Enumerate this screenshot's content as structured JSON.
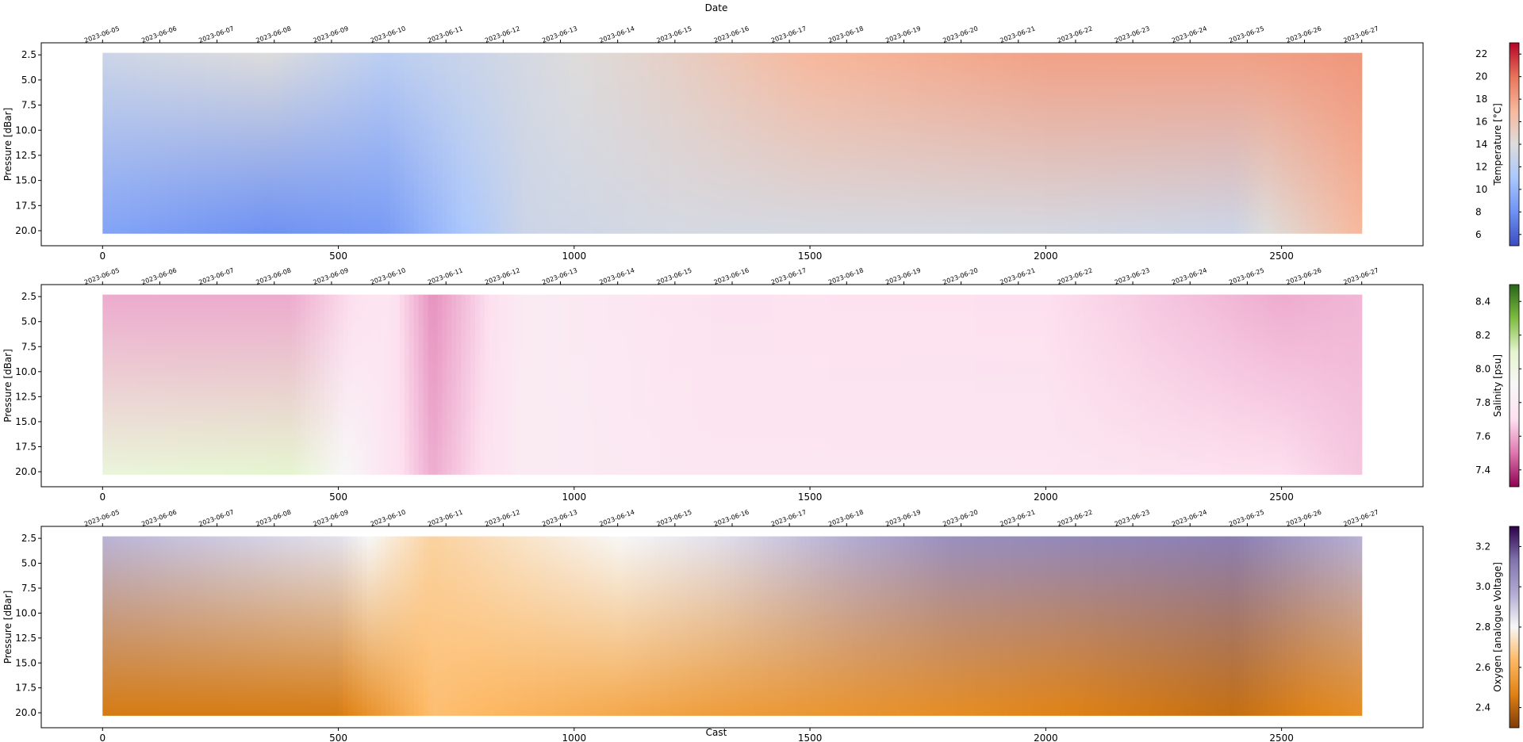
{
  "figure": {
    "top_axis_label": "Date",
    "bottom_axis_label": "Cast"
  },
  "dates": [
    "2023-06-05",
    "2023-06-06",
    "2023-06-07",
    "2023-06-08",
    "2023-06-09",
    "2023-06-10",
    "2023-06-11",
    "2023-06-12",
    "2023-06-13",
    "2023-06-14",
    "2023-06-15",
    "2023-06-16",
    "2023-06-17",
    "2023-06-18",
    "2023-06-19",
    "2023-06-20",
    "2023-06-21",
    "2023-06-22",
    "2023-06-23",
    "2023-06-24",
    "2023-06-25",
    "2023-06-26",
    "2023-06-27"
  ],
  "chart_data": [
    {
      "type": "heatmap",
      "name": "temperature",
      "xlabel": "",
      "ylabel": "Pressure [dBar]",
      "colorbar_label": "Temperature [°C]",
      "colorbar_ticks": [
        "6",
        "8",
        "10",
        "12",
        "14",
        "16",
        "18",
        "20",
        "22"
      ],
      "clim": [
        5,
        23
      ],
      "colormap": "coolwarm",
      "x_ticks": [
        0,
        500,
        1000,
        1500,
        2000,
        2500
      ],
      "xlim": [
        -130,
        2800
      ],
      "y_ticks": [
        "2.5",
        "5.0",
        "7.5",
        "10.0",
        "12.5",
        "15.0",
        "17.5",
        "20.0"
      ],
      "ylim": [
        21.5,
        1.3
      ],
      "cast_range": [
        0,
        2670
      ],
      "profile": [
        {
          "cast": 0,
          "surface": 13,
          "bottom": 9
        },
        {
          "cast": 350,
          "surface": 14,
          "bottom": 8
        },
        {
          "cast": 600,
          "surface": 12,
          "bottom": 8.5
        },
        {
          "cast": 900,
          "surface": 13.5,
          "bottom": 13
        },
        {
          "cast": 1200,
          "surface": 15,
          "bottom": 13.5
        },
        {
          "cast": 1500,
          "surface": 17,
          "bottom": 13.5
        },
        {
          "cast": 2000,
          "surface": 18,
          "bottom": 13.5
        },
        {
          "cast": 2400,
          "surface": 18,
          "bottom": 13
        },
        {
          "cast": 2670,
          "surface": 18.5,
          "bottom": 17
        }
      ]
    },
    {
      "type": "heatmap",
      "name": "salinity",
      "xlabel": "",
      "ylabel": "Pressure [dBar]",
      "colorbar_label": "Salinity [psu]",
      "colorbar_ticks": [
        "7.4",
        "7.6",
        "7.8",
        "8.0",
        "8.2",
        "8.4"
      ],
      "clim": [
        7.3,
        8.5
      ],
      "colormap": "PiYG",
      "x_ticks": [
        0,
        500,
        1000,
        1500,
        2000,
        2500
      ],
      "xlim": [
        -130,
        2800
      ],
      "y_ticks": [
        "2.5",
        "5.0",
        "7.5",
        "10.0",
        "12.5",
        "15.0",
        "17.5",
        "20.0"
      ],
      "ylim": [
        21.5,
        1.3
      ],
      "cast_range": [
        0,
        2670
      ],
      "profile": [
        {
          "cast": 0,
          "surface": 7.6,
          "bottom": 8.05
        },
        {
          "cast": 400,
          "surface": 7.6,
          "bottom": 8.1
        },
        {
          "cast": 600,
          "surface": 7.75,
          "bottom": 7.75
        },
        {
          "cast": 700,
          "surface": 7.55,
          "bottom": 7.6
        },
        {
          "cast": 900,
          "surface": 7.8,
          "bottom": 7.8
        },
        {
          "cast": 1300,
          "surface": 7.72,
          "bottom": 7.75
        },
        {
          "cast": 2000,
          "surface": 7.7,
          "bottom": 7.75
        },
        {
          "cast": 2500,
          "surface": 7.6,
          "bottom": 7.7
        },
        {
          "cast": 2670,
          "surface": 7.62,
          "bottom": 7.65
        }
      ]
    },
    {
      "type": "heatmap",
      "name": "oxygen",
      "xlabel": "Cast",
      "ylabel": "Pressure [dBar]",
      "colorbar_label": "Oxygen [analogue Voltage]",
      "colorbar_ticks": [
        "2.4",
        "2.6",
        "2.8",
        "3.0",
        "3.2"
      ],
      "clim": [
        2.3,
        3.3
      ],
      "colormap": "PuOr",
      "x_ticks": [
        0,
        500,
        1000,
        1500,
        2000,
        2500
      ],
      "xlim": [
        -130,
        2800
      ],
      "y_ticks": [
        "2.5",
        "5.0",
        "7.5",
        "10.0",
        "12.5",
        "15.0",
        "17.5",
        "20.0"
      ],
      "ylim": [
        21.5,
        1.3
      ],
      "cast_range": [
        0,
        2670
      ],
      "profile": [
        {
          "cast": 0,
          "surface": 2.95,
          "bottom": 2.45
        },
        {
          "cast": 500,
          "surface": 2.85,
          "bottom": 2.45
        },
        {
          "cast": 700,
          "surface": 2.7,
          "bottom": 2.65
        },
        {
          "cast": 1300,
          "surface": 2.85,
          "bottom": 2.55
        },
        {
          "cast": 1800,
          "surface": 3.05,
          "bottom": 2.5
        },
        {
          "cast": 2400,
          "surface": 3.1,
          "bottom": 2.42
        },
        {
          "cast": 2670,
          "surface": 2.95,
          "bottom": 2.5
        }
      ]
    }
  ]
}
